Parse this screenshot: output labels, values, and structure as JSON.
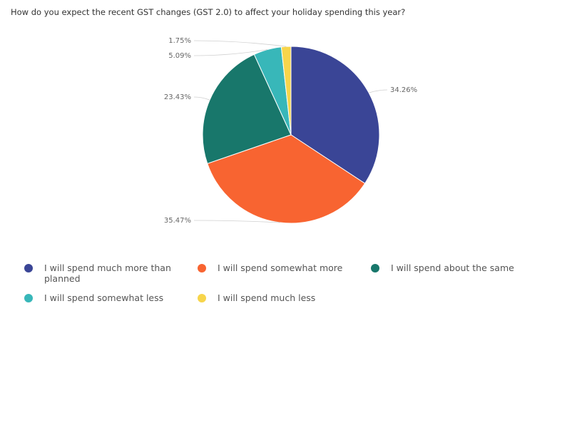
{
  "chart_data": {
    "type": "pie",
    "title": "How do you expect the recent GST changes (GST 2.0) to affect your holiday spending this year?",
    "categories": [
      "I will spend much more than planned",
      "I will spend somewhat more",
      "I will spend about the same",
      "I will spend somewhat less",
      "I will spend much less"
    ],
    "values": [
      34.26,
      35.47,
      23.43,
      5.09,
      1.75
    ],
    "data_labels": [
      "34.26%",
      "35.47%",
      "23.43%",
      "5.09%",
      "1.75%"
    ],
    "colors": [
      "#3a4596",
      "#f86431",
      "#18776b",
      "#38b7b9",
      "#f7d54b"
    ],
    "legend_position": "bottom"
  }
}
